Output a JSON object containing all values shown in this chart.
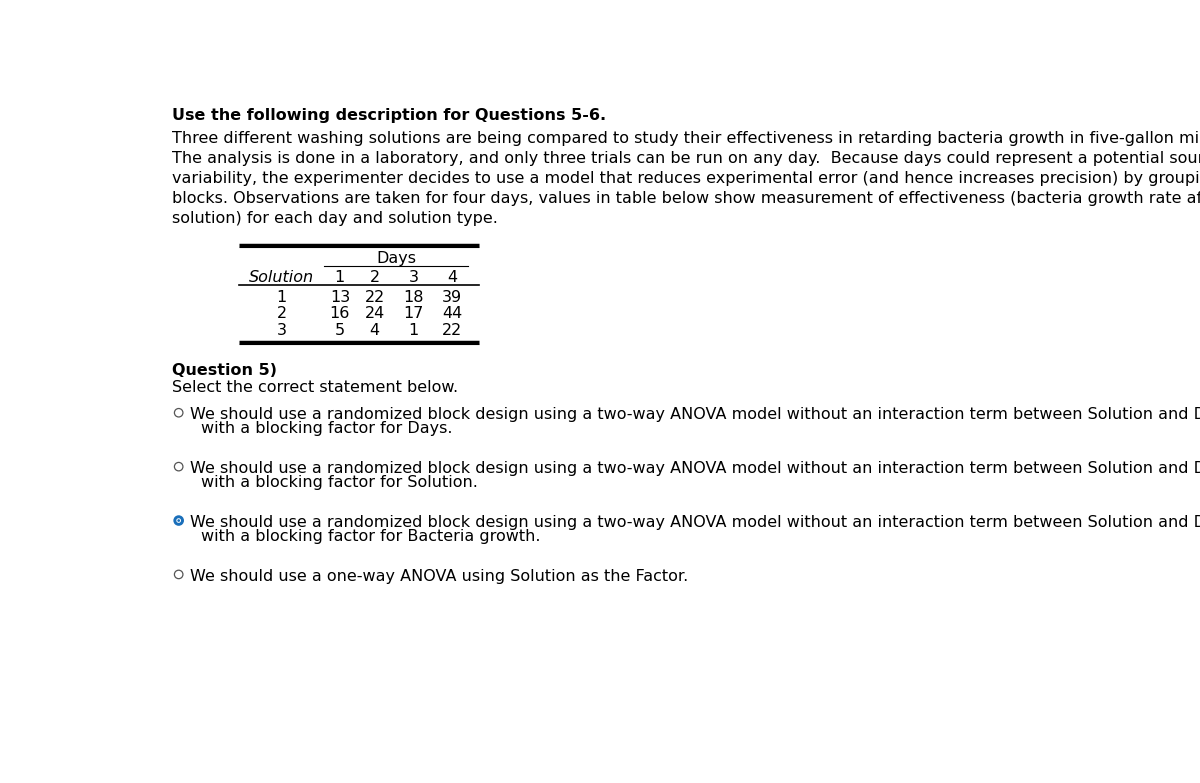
{
  "title_bold": "Use the following description for Questions 5-6.",
  "desc_lines": [
    "Three different washing solutions are being compared to study their effectiveness in retarding bacteria growth in five-gallon milk containers.",
    "The analysis is done in a laboratory, and only three trials can be run on any day.  Because days could represent a potential source of",
    "variability, the experimenter decides to use a model that reduces experimental error (and hence increases precision) by grouping days into",
    "blocks. Observations are taken for four days, values in table below show measurement of effectiveness (bacteria growth rate after using the",
    "solution) for each day and solution type."
  ],
  "table_header_group": "Days",
  "table_col_headers": [
    "Solution",
    "1",
    "2",
    "3",
    "4"
  ],
  "table_rows": [
    [
      "1",
      "13",
      "22",
      "18",
      "39"
    ],
    [
      "2",
      "16",
      "24",
      "17",
      "44"
    ],
    [
      "3",
      "5",
      "4",
      "1",
      "22"
    ]
  ],
  "question_label": "Question 5)",
  "question_text": "Select the correct statement below.",
  "options": [
    {
      "line1": "We should use a randomized block design using a two-way ANOVA model without an interaction term between Solution and Day and",
      "line2": "with a blocking factor for Days.",
      "selected": false
    },
    {
      "line1": "We should use a randomized block design using a two-way ANOVA model without an interaction term between Solution and Day and",
      "line2": "with a blocking factor for Solution.",
      "selected": false
    },
    {
      "line1": "We should use a randomized block design using a two-way ANOVA model without an interaction term between Solution and Day and",
      "line2": "with a blocking factor for Bacteria growth.",
      "selected": true
    },
    {
      "line1": "We should use a one-way ANOVA using Solution as the Factor.",
      "line2": "",
      "selected": false
    }
  ],
  "bg_color": "#ffffff",
  "text_color": "#000000",
  "selected_circle_color": "#1a6fba",
  "font_size_body": 11.5,
  "font_size_bold": 11.5
}
